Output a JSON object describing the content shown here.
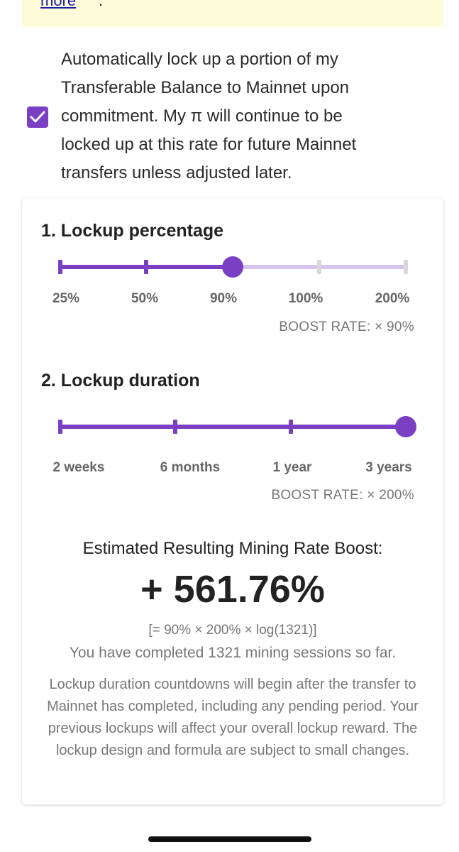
{
  "banner": {
    "link_text": "more",
    "trailing": "."
  },
  "consent": {
    "checked": true,
    "lines": [
      "Automatically lock up a portion of my",
      "Transferable Balance to Mainnet upon",
      "commitment. My π will continue to be",
      "locked up at this rate for future Mainnet",
      "transfers unless adjusted later."
    ]
  },
  "lockup_percentage": {
    "title": "1. Lockup percentage",
    "options": [
      "25%",
      "50%",
      "90%",
      "100%",
      "200%"
    ],
    "selected_index": 2,
    "boost_rate": "BOOST RATE: × 90%"
  },
  "lockup_duration": {
    "title": "2. Lockup duration",
    "options": [
      "2 weeks",
      "6 months",
      "1 year",
      "3 years"
    ],
    "selected_index": 3,
    "boost_rate": "BOOST RATE: × 200%"
  },
  "result": {
    "title": "Estimated Resulting Mining Rate Boost:",
    "value": "+ 561.76%",
    "formula": "[= 90% × 200% × log(1321)]",
    "sessions": "You have completed 1321 mining sessions so far.",
    "note": "Lockup duration countdowns will begin after the transfer to Mainnet has completed, including any pending period. Your previous lockups will affect your overall lockup reward. The lockup design and formula are subject to small changes."
  },
  "colors": {
    "accent": "#7b3fc4",
    "accent_light": "#d6c4ec",
    "tick_inactive": "#d8d8d8"
  }
}
